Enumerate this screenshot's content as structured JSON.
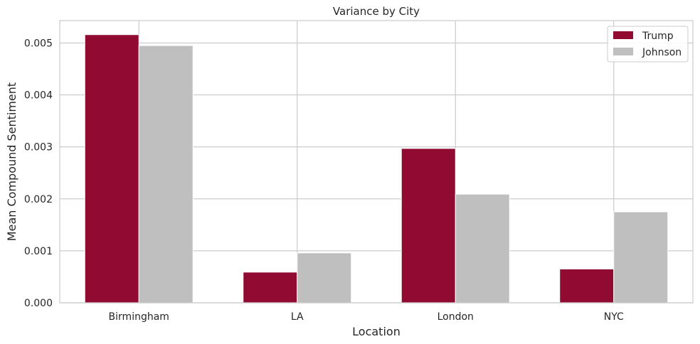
{
  "chart_data": {
    "type": "bar",
    "title": "Variance by City",
    "xlabel": "Location",
    "ylabel": "Mean Compound Sentiment",
    "categories": [
      "Birmingham",
      "LA",
      "London",
      "NYC"
    ],
    "series": [
      {
        "name": "Trump",
        "color": "#910a31",
        "values": [
          0.00516,
          0.00059,
          0.00297,
          0.00065
        ]
      },
      {
        "name": "Johnson",
        "color": "#bfbfbf",
        "values": [
          0.00495,
          0.00096,
          0.00209,
          0.00175
        ]
      }
    ],
    "ylim": [
      0,
      0.00543
    ],
    "yticks": [
      0.0,
      0.001,
      0.002,
      0.003,
      0.004,
      0.005
    ],
    "ytick_labels": [
      "0.000",
      "0.001",
      "0.002",
      "0.003",
      "0.004",
      "0.005"
    ],
    "grid": true,
    "legend_position": "top-right"
  }
}
